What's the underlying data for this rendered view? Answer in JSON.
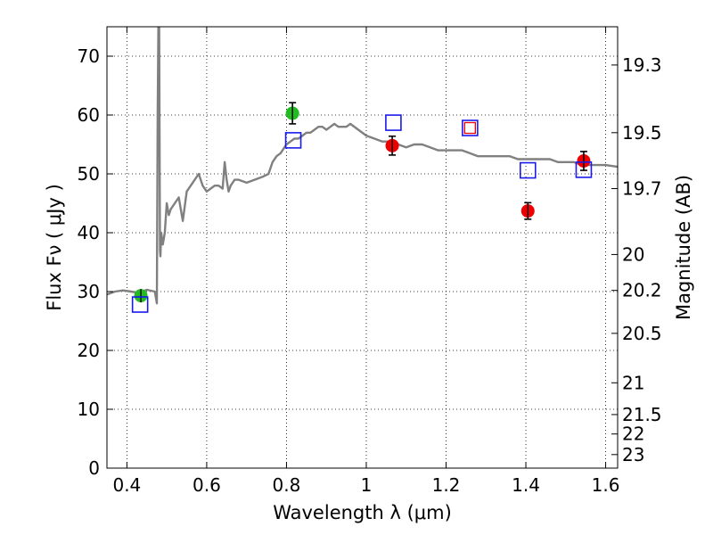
{
  "chart_data": {
    "type": "scatter",
    "xlabel": "Wavelength  λ (μm)",
    "ylabel": "Flux  Fν  ( μJy )",
    "ylabel_right": "Magnitude (AB)",
    "xlim": [
      0.35,
      1.63
    ],
    "ylim": [
      0,
      75
    ],
    "x_ticks": [
      0.4,
      0.6,
      0.8,
      1.0,
      1.2,
      1.4,
      1.6
    ],
    "x_tick_labels": [
      "0.4",
      "0.6",
      "0.8",
      "1",
      "1.2",
      "1.4",
      "1.6"
    ],
    "y_ticks": [
      0,
      10,
      20,
      30,
      40,
      50,
      60,
      70
    ],
    "y_tick_labels": [
      "0",
      "10",
      "20",
      "30",
      "40",
      "50",
      "60",
      "70"
    ],
    "right_ticks": [
      {
        "label": "19.3",
        "flux": 68.5
      },
      {
        "label": "19.5",
        "flux": 57.0
      },
      {
        "label": "19.7",
        "flux": 47.5
      },
      {
        "label": "20",
        "flux": 36.3
      },
      {
        "label": "20.2",
        "flux": 30.2
      },
      {
        "label": "20.5",
        "flux": 22.9
      },
      {
        "label": "21",
        "flux": 14.5
      },
      {
        "label": "21.5",
        "flux": 9.1
      },
      {
        "label": "22",
        "flux": 5.8
      },
      {
        "label": "23",
        "flux": 2.3
      }
    ],
    "grid": true,
    "series": [
      {
        "kind": "line",
        "color": "#808080",
        "x": [
          0.35,
          0.37,
          0.39,
          0.41,
          0.43,
          0.45,
          0.47,
          0.475,
          0.477,
          0.479,
          0.481,
          0.483,
          0.484,
          0.486,
          0.49,
          0.495,
          0.5,
          0.505,
          0.51,
          0.52,
          0.53,
          0.54,
          0.55,
          0.56,
          0.57,
          0.58,
          0.59,
          0.6,
          0.61,
          0.62,
          0.63,
          0.64,
          0.645,
          0.65,
          0.655,
          0.66,
          0.67,
          0.68,
          0.7,
          0.72,
          0.74,
          0.755,
          0.765,
          0.775,
          0.785,
          0.79,
          0.8,
          0.81,
          0.82,
          0.83,
          0.84,
          0.85,
          0.86,
          0.87,
          0.88,
          0.89,
          0.9,
          0.91,
          0.92,
          0.93,
          0.94,
          0.95,
          0.96,
          0.98,
          1.0,
          1.02,
          1.04,
          1.06,
          1.08,
          1.1,
          1.12,
          1.14,
          1.16,
          1.18,
          1.2,
          1.22,
          1.24,
          1.26,
          1.28,
          1.3,
          1.32,
          1.34,
          1.36,
          1.38,
          1.4,
          1.42,
          1.44,
          1.46,
          1.48,
          1.5,
          1.52,
          1.54,
          1.56,
          1.58,
          1.6,
          1.63
        ],
        "y": [
          29.5,
          30.0,
          30.2,
          30.0,
          29.8,
          30.3,
          30.0,
          28.0,
          60.0,
          75.0,
          75.0,
          37.0,
          36.0,
          40.0,
          38.0,
          40.0,
          45.0,
          43.0,
          44.0,
          45.0,
          46.0,
          42.0,
          47.0,
          48.0,
          49.0,
          50.0,
          48.0,
          47.0,
          47.5,
          48.0,
          48.0,
          47.5,
          52.0,
          49.0,
          47.0,
          48.0,
          49.0,
          49.0,
          48.5,
          49.0,
          49.5,
          50.0,
          52.0,
          53.0,
          53.5,
          54.0,
          55.0,
          55.5,
          56.0,
          56.0,
          56.5,
          57.0,
          57.0,
          57.5,
          58.0,
          58.0,
          57.5,
          58.0,
          58.5,
          58.0,
          58.0,
          58.0,
          58.5,
          57.5,
          56.5,
          56.0,
          55.5,
          55.5,
          55.0,
          54.5,
          55.0,
          55.0,
          54.5,
          54.0,
          54.0,
          54.0,
          54.0,
          53.5,
          53.0,
          53.0,
          53.0,
          53.0,
          53.0,
          52.5,
          52.5,
          52.5,
          52.5,
          52.5,
          52.0,
          52.0,
          52.0,
          51.5,
          51.5,
          51.5,
          51.5,
          51.2
        ]
      },
      {
        "kind": "points",
        "marker": "circle",
        "color": "#22bb22",
        "points": [
          {
            "x": 0.435,
            "y": 29.3,
            "err": 0.8
          },
          {
            "x": 0.815,
            "y": 60.3,
            "err": 1.8
          }
        ]
      },
      {
        "kind": "points",
        "marker": "circle",
        "color": "#ee0000",
        "points": [
          {
            "x": 1.065,
            "y": 54.8,
            "err": 1.6
          },
          {
            "x": 1.405,
            "y": 43.7,
            "err": 1.4
          },
          {
            "x": 1.545,
            "y": 52.2,
            "err": 1.6
          }
        ]
      },
      {
        "kind": "points",
        "marker": "square",
        "color": "#1a1aee",
        "points": [
          {
            "x": 0.433,
            "y": 27.8
          },
          {
            "x": 0.817,
            "y": 55.7
          },
          {
            "x": 1.068,
            "y": 58.7
          },
          {
            "x": 1.405,
            "y": 50.6
          },
          {
            "x": 1.545,
            "y": 50.7
          }
        ]
      },
      {
        "kind": "points",
        "marker": "square-red-inset",
        "color": "#1a1aee",
        "inner_color": "#ee0000",
        "points": [
          {
            "x": 1.26,
            "y": 57.8
          }
        ]
      }
    ]
  }
}
